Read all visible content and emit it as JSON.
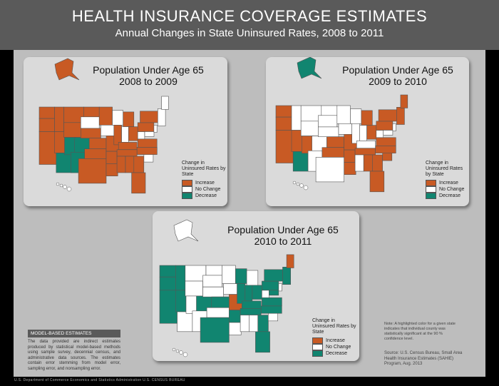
{
  "header": {
    "title": "HEALTH INSURANCE COVERAGE ESTIMATES",
    "subtitle": "Annual Changes in State Uninsured Rates, 2008 to 2011"
  },
  "colors": {
    "increase": "#c85a24",
    "no_change": "#ffffff",
    "decrease": "#118570"
  },
  "maps": [
    {
      "title_line1": "Population Under Age 65",
      "title_line2": "2008 to 2009",
      "legend": {
        "title": "Change in Uninsured Rates by State",
        "items": [
          {
            "label": "Increase",
            "color": "#c85a24"
          },
          {
            "label": "No Change",
            "color": "#ffffff"
          },
          {
            "label": "Decrease",
            "color": "#118570"
          }
        ]
      }
    },
    {
      "title_line1": "Population Under Age 65",
      "title_line2": "2009 to 2010",
      "legend": {
        "title": "Change in Uninsured Rates by State",
        "items": [
          {
            "label": "Increase",
            "color": "#c85a24"
          },
          {
            "label": "No Change",
            "color": "#ffffff"
          },
          {
            "label": "Decrease",
            "color": "#118570"
          }
        ]
      }
    },
    {
      "title_line1": "Population Under Age 65",
      "title_line2": "2010 to 2011",
      "legend": {
        "title": "Change in Uninsured Rates by State",
        "items": [
          {
            "label": "Increase",
            "color": "#c85a24"
          },
          {
            "label": "No Change",
            "color": "#ffffff"
          },
          {
            "label": "Decrease",
            "color": "#118570"
          }
        ]
      }
    }
  ],
  "model_based": {
    "heading": "MODEL-BASED ESTIMATES",
    "text": "The data provided are indirect estimates produced by statistical model-based methods using sample survey, decennial census, and administrative data sources. The estimates contain error stemming from model error, sampling error, and nonsampling error."
  },
  "note": "Note: A highlighted color for a given state indicates that individual county was statistically significant at the 90 % confidence level.",
  "source": "Source: U.S. Census Bureau, Small Area Health Insurance Estimates (SAHIE) Program, Aug. 2013",
  "footer": "U.S. Department of Commerce  Economics and Statistics Administration  U.S. CENSUS BUREAU"
}
